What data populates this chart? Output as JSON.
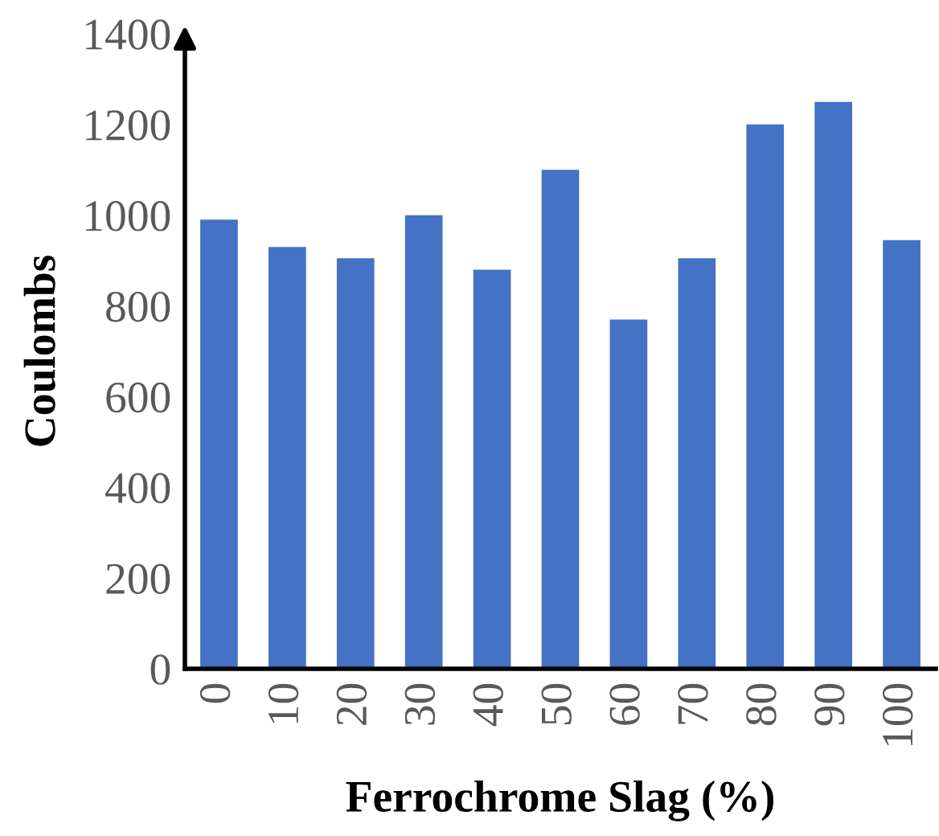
{
  "chart_data": {
    "type": "bar",
    "xlabel": "Ferrochrome Slag (%)",
    "ylabel": "Coulombs",
    "categories": [
      "0",
      "10",
      "20",
      "30",
      "40",
      "50",
      "60",
      "70",
      "80",
      "90",
      "100"
    ],
    "values": [
      990,
      930,
      905,
      1000,
      880,
      1100,
      770,
      905,
      1200,
      1250,
      945
    ],
    "color": "#4472c4",
    "ylim": [
      0,
      1400
    ],
    "yticks": [
      0,
      200,
      400,
      600,
      800,
      1000,
      1200,
      1400
    ],
    "grid": false
  }
}
